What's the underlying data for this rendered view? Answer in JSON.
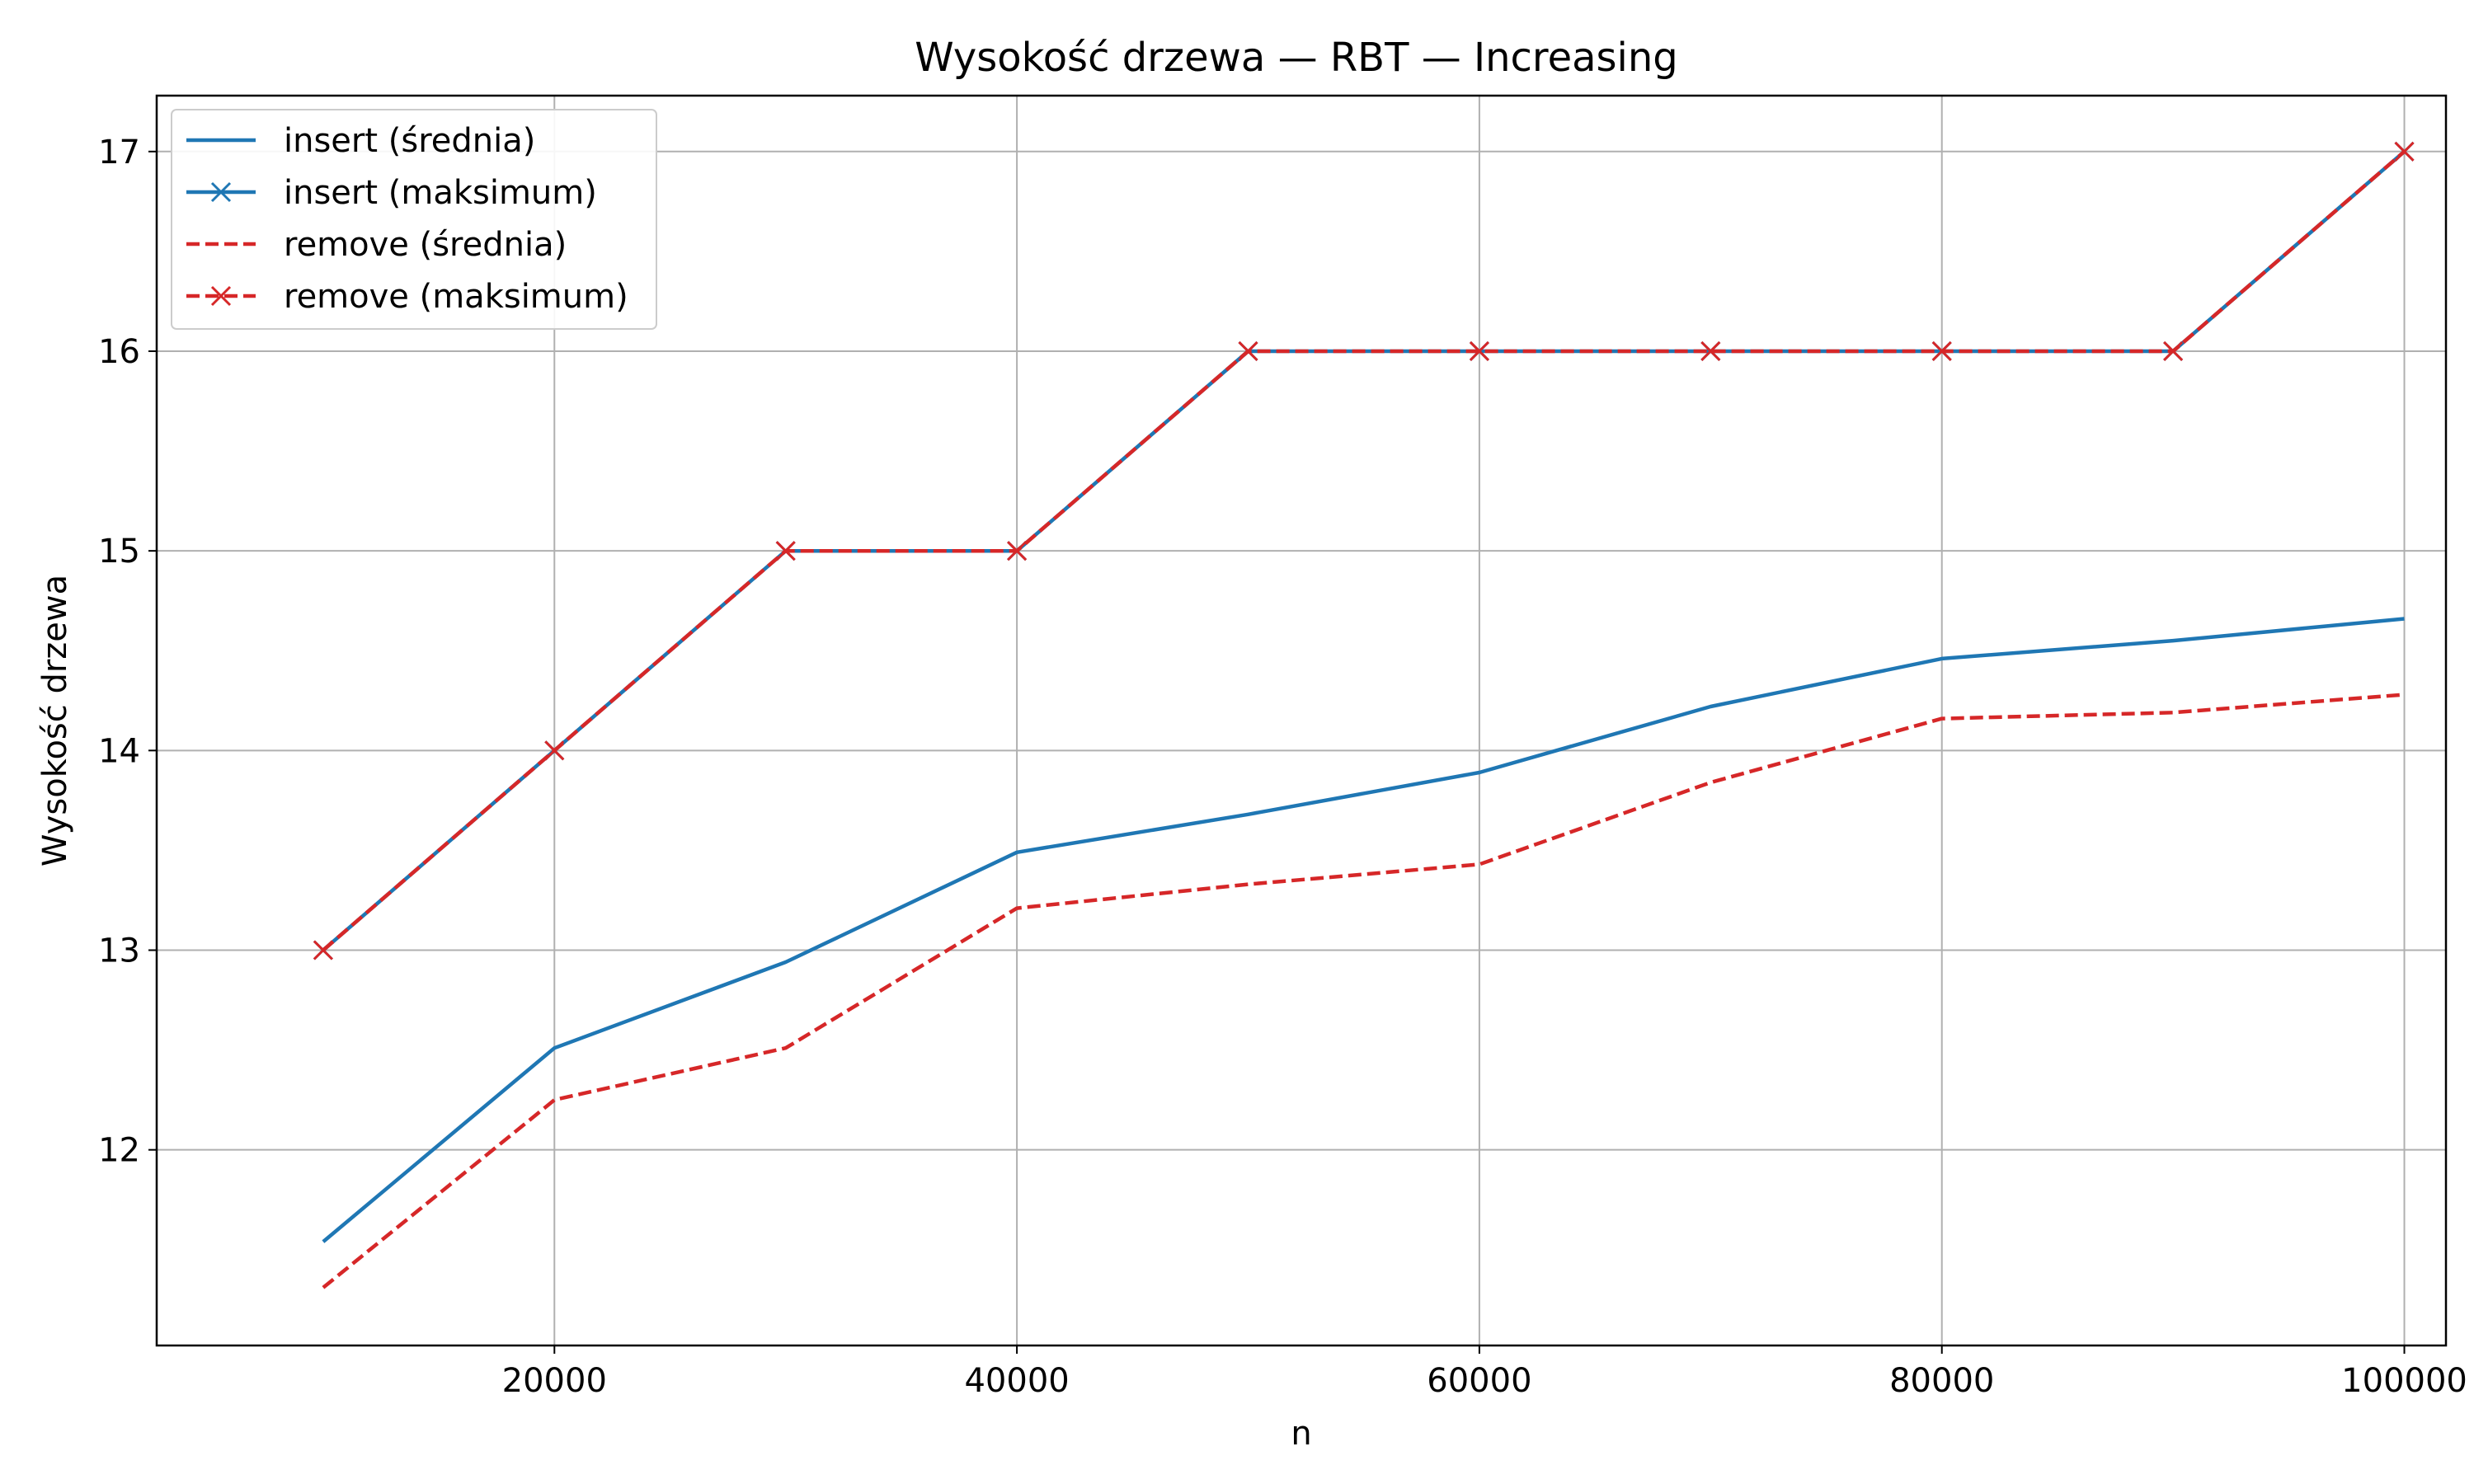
{
  "chart_data": {
    "type": "line",
    "title": "Wysokość drzewa — RBT — Increasing",
    "xlabel": "n",
    "ylabel": "Wysokość drzewa",
    "x": [
      10000,
      20000,
      30000,
      40000,
      50000,
      60000,
      70000,
      80000,
      90000,
      100000
    ],
    "xlim": [
      2800,
      101800
    ],
    "ylim": [
      11.02,
      17.28
    ],
    "x_ticks": [
      20000,
      40000,
      60000,
      80000,
      100000
    ],
    "x_tick_labels": [
      "20000",
      "40000",
      "60000",
      "80000",
      "100000"
    ],
    "y_ticks": [
      12,
      13,
      14,
      15,
      16,
      17
    ],
    "y_tick_labels": [
      "12",
      "13",
      "14",
      "15",
      "16",
      "17"
    ],
    "grid": true,
    "legend_position": "top-left",
    "series": [
      {
        "name": "insert (średnia)",
        "values": [
          11.54,
          12.51,
          12.94,
          13.49,
          13.68,
          13.89,
          14.22,
          14.46,
          14.55,
          14.66
        ],
        "color": "#1f77b4",
        "line_style": "solid",
        "marker": "none"
      },
      {
        "name": "insert (maksimum)",
        "values": [
          13,
          14,
          15,
          15,
          16,
          16,
          16,
          16,
          16,
          17
        ],
        "color": "#1f77b4",
        "line_style": "solid",
        "marker": "x"
      },
      {
        "name": "remove (średnia)",
        "values": [
          11.31,
          12.25,
          12.51,
          13.21,
          13.33,
          13.43,
          13.84,
          14.16,
          14.19,
          14.28
        ],
        "color": "#d62728",
        "line_style": "dashed",
        "marker": "none"
      },
      {
        "name": "remove (maksimum)",
        "values": [
          13,
          14,
          15,
          15,
          16,
          16,
          16,
          16,
          16,
          17
        ],
        "color": "#d62728",
        "line_style": "dashed",
        "marker": "x"
      }
    ]
  }
}
